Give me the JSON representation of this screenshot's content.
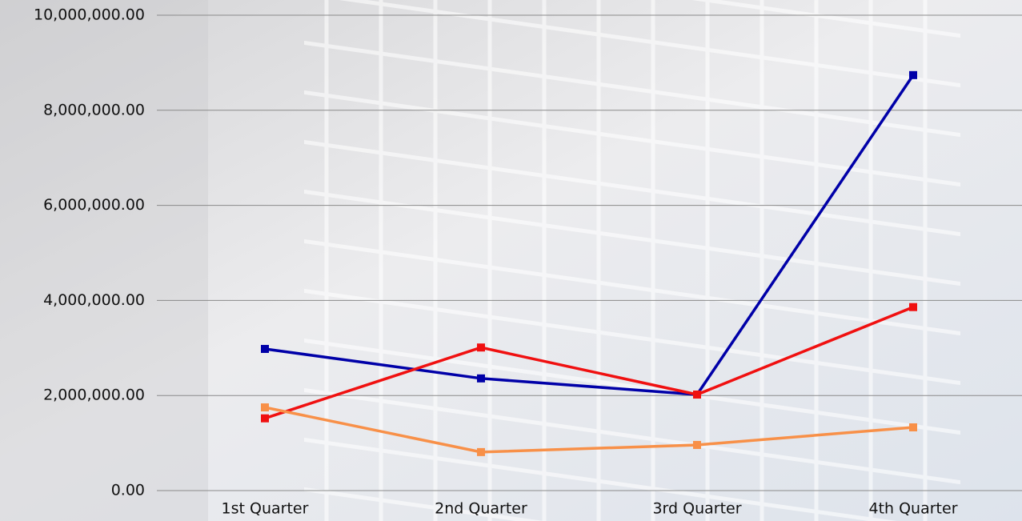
{
  "chart_data": {
    "type": "line",
    "categories": [
      "1st Quarter",
      "2nd Quarter",
      "3rd Quarter",
      "4th Quarter"
    ],
    "series": [
      {
        "color": "#0000a8",
        "values": [
          2980000,
          2360000,
          2020000,
          8740000
        ]
      },
      {
        "color": "#f01010",
        "values": [
          1520000,
          3010000,
          2020000,
          3860000
        ]
      },
      {
        "color": "#f89048",
        "values": [
          1750000,
          810000,
          960000,
          1330000
        ]
      }
    ],
    "ylim": [
      0,
      10000000
    ],
    "yticks": [
      {
        "value": 0,
        "label": "0.00"
      },
      {
        "value": 2000000,
        "label": "2,000,000.00"
      },
      {
        "value": 4000000,
        "label": "4,000,000.00"
      },
      {
        "value": 6000000,
        "label": "6,000,000.00"
      },
      {
        "value": 8000000,
        "label": "8,000,000.00"
      },
      {
        "value": 10000000,
        "label": "10,000,000.00"
      }
    ],
    "grid": true
  }
}
